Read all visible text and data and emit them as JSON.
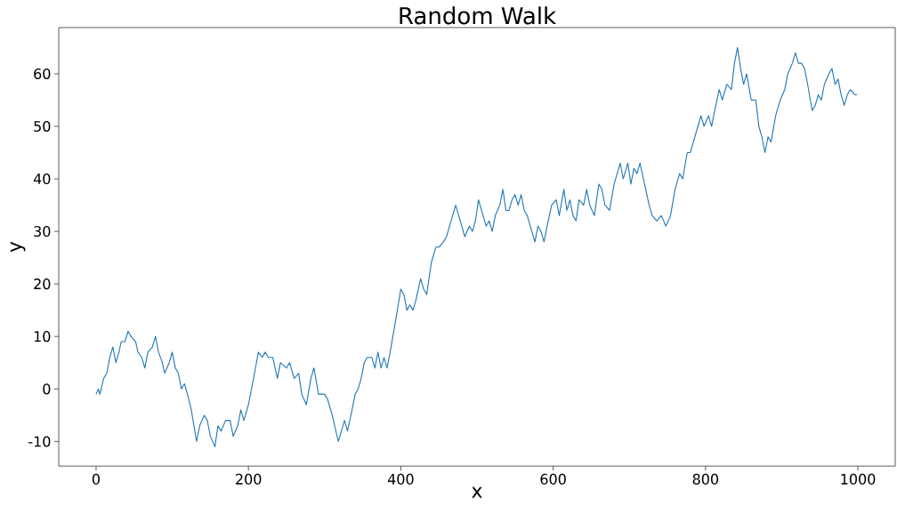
{
  "chart_data": {
    "type": "line",
    "title": "Random Walk",
    "xlabel": "x",
    "ylabel": "y",
    "xlim": [
      -49,
      1049
    ],
    "ylim": [
      -14.7,
      68.8
    ],
    "xticks": [
      0,
      200,
      400,
      600,
      800,
      1000
    ],
    "yticks": [
      -10,
      0,
      10,
      20,
      30,
      40,
      50,
      60
    ],
    "grid": false,
    "marker": "none",
    "line_style": "solid",
    "series": [
      {
        "color": "#1f77b4",
        "x": [
          0,
          3,
          5,
          10,
          14,
          18,
          22,
          26,
          30,
          33,
          38,
          42,
          46,
          52,
          55,
          60,
          64,
          68,
          74,
          78,
          82,
          87,
          90,
          96,
          100,
          104,
          108,
          112,
          116,
          120,
          125,
          132,
          136,
          142,
          146,
          150,
          156,
          160,
          164,
          170,
          176,
          180,
          186,
          190,
          194,
          200,
          208,
          213,
          218,
          222,
          226,
          232,
          238,
          242,
          250,
          254,
          260,
          266,
          270,
          276,
          282,
          286,
          292,
          296,
          300,
          304,
          310,
          318,
          322,
          326,
          330,
          336,
          340,
          344,
          348,
          352,
          356,
          362,
          366,
          370,
          374,
          378,
          382,
          386,
          392,
          400,
          404,
          408,
          412,
          416,
          420,
          426,
          430,
          434,
          440,
          446,
          450,
          456,
          460,
          466,
          472,
          476,
          480,
          484,
          490,
          494,
          498,
          502,
          508,
          512,
          516,
          520,
          524,
          530,
          534,
          538,
          542,
          546,
          550,
          554,
          558,
          562,
          566,
          570,
          576,
          580,
          584,
          588,
          592,
          598,
          604,
          608,
          614,
          618,
          622,
          626,
          630,
          634,
          640,
          644,
          648,
          654,
          660,
          664,
          668,
          674,
          680,
          684,
          688,
          692,
          698,
          702,
          706,
          710,
          714,
          720,
          726,
          730,
          736,
          742,
          748,
          754,
          760,
          766,
          770,
          776,
          780,
          786,
          790,
          794,
          798,
          804,
          808,
          812,
          818,
          822,
          828,
          834,
          838,
          842,
          846,
          850,
          854,
          860,
          866,
          870,
          874,
          878,
          882,
          886,
          892,
          898,
          904,
          908,
          914,
          918,
          922,
          926,
          930,
          934,
          940,
          944,
          948,
          952,
          956,
          962,
          966,
          970,
          974,
          978,
          982,
          986,
          990,
          996,
          999
        ],
        "values": [
          -1,
          0,
          -1,
          2,
          3,
          6,
          8,
          5,
          7,
          9,
          9,
          11,
          10,
          9,
          7,
          6,
          4,
          7,
          8,
          10,
          7,
          5,
          3,
          5,
          7,
          4,
          3,
          0,
          1,
          -1,
          -4,
          -10,
          -7,
          -5,
          -6,
          -9,
          -11,
          -7,
          -8,
          -6,
          -6,
          -9,
          -7,
          -4,
          -6,
          -3,
          3,
          7,
          6,
          7,
          6,
          6,
          2,
          5,
          4,
          5,
          2,
          3,
          -1,
          -3,
          2,
          4,
          -1,
          -1,
          -1,
          -2,
          -5,
          -10,
          -8,
          -6,
          -8,
          -4,
          -1,
          0,
          2,
          5,
          6,
          6,
          4,
          7,
          4,
          6,
          4,
          7,
          12,
          19,
          18,
          15,
          16,
          15,
          17,
          21,
          19,
          18,
          24,
          27,
          27,
          28,
          29,
          32,
          35,
          33,
          31,
          29,
          31,
          30,
          32,
          36,
          33,
          31,
          32,
          30,
          33,
          35,
          38,
          34,
          34,
          36,
          37,
          35,
          37,
          34,
          33,
          31,
          28,
          31,
          30,
          28,
          31,
          35,
          36,
          33,
          38,
          34,
          36,
          33,
          32,
          36,
          35,
          38,
          35,
          33,
          39,
          38,
          35,
          34,
          39,
          41,
          43,
          40,
          43,
          39,
          42,
          41,
          43,
          39,
          35,
          33,
          32,
          33,
          31,
          33,
          38,
          41,
          40,
          45,
          45,
          48,
          50,
          52,
          50,
          52,
          50,
          53,
          57,
          55,
          58,
          57,
          62,
          65,
          61,
          58,
          60,
          55,
          55,
          50,
          48,
          45,
          48,
          47,
          52,
          55,
          57,
          60,
          62,
          64,
          62,
          62,
          61,
          58,
          53,
          54,
          56,
          55,
          58,
          60,
          61,
          58,
          59,
          56,
          54,
          56,
          57,
          56,
          56
        ]
      }
    ]
  }
}
